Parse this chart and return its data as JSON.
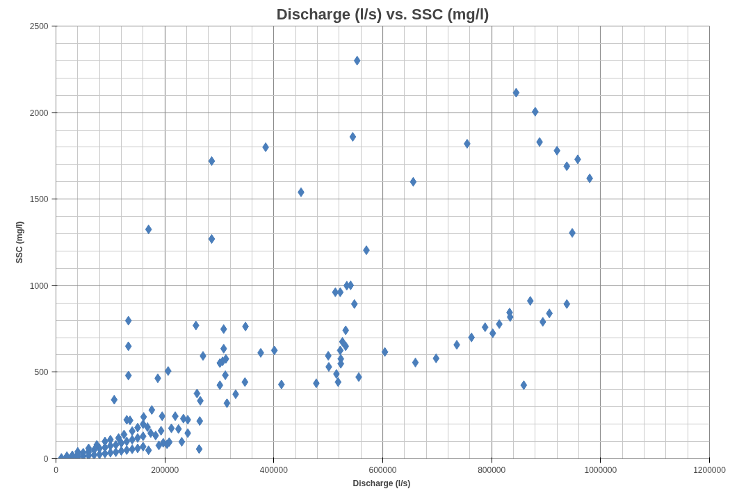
{
  "chart_data": {
    "type": "scatter",
    "title": "Discharge (l/s) vs. SSC (mg/l)",
    "xlabel": "Discharge  (l/s)",
    "ylabel": "SSC (mg/l)",
    "xlim": [
      0,
      1200000
    ],
    "xticks": [
      0,
      200000,
      400000,
      600000,
      800000,
      1000000,
      1200000
    ],
    "ylim": [
      0,
      2500
    ],
    "yticks": [
      0,
      500,
      1000,
      1500,
      2000,
      2500
    ],
    "grid": true,
    "marker": "diamond",
    "series": [
      {
        "color": "#4a7ebb",
        "x": [
          10000,
          20000,
          30000,
          40000,
          50000,
          60000,
          70000,
          80000,
          90000,
          100000,
          110000,
          120000,
          130000,
          140000,
          150000,
          160000,
          20000,
          30000,
          40000,
          50000,
          60000,
          70000,
          80000,
          90000,
          100000,
          110000,
          120000,
          130000,
          140000,
          150000,
          160000,
          40000,
          60000,
          75000,
          90000,
          100000,
          115000,
          125000,
          140000,
          150000,
          160000,
          107000,
          130000,
          136000,
          133000,
          133000,
          133000,
          161000,
          168000,
          170000,
          174000,
          176000,
          183000,
          189000,
          204000,
          187000,
          206000,
          195000,
          219000,
          234000,
          242000,
          212000,
          225000,
          242000,
          193000,
          197000,
          208000,
          231000,
          257000,
          308000,
          348000,
          308000,
          270000,
          376000,
          401000,
          306000,
          312000,
          301000,
          311000,
          301000,
          347000,
          414000,
          259000,
          265000,
          330000,
          314000,
          264000,
          263000,
          513000,
          522000,
          534000,
          541000,
          548000,
          532000,
          526000,
          532000,
          522000,
          500000,
          523000,
          523000,
          501000,
          515000,
          518000,
          556000,
          478000,
          604000,
          660000,
          698000,
          736000,
          763000,
          788000,
          802000,
          814000,
          833000,
          834000,
          871000,
          859000,
          894000,
          906000,
          938000,
          170000,
          286000,
          286000,
          385000,
          450000,
          545000,
          553000,
          570000,
          656000,
          755000,
          845000,
          880000,
          888000,
          920000,
          938000,
          958000,
          980000,
          948000
        ],
        "values": [
          5,
          5,
          8,
          10,
          15,
          18,
          22,
          25,
          30,
          35,
          38,
          45,
          50,
          55,
          60,
          70,
          15,
          20,
          25,
          35,
          40,
          50,
          60,
          65,
          75,
          80,
          90,
          100,
          110,
          120,
          130,
          40,
          60,
          80,
          100,
          110,
          120,
          140,
          160,
          180,
          200,
          341,
          225,
          222,
          798,
          650,
          481,
          242,
          183,
          49,
          148,
          282,
          134,
          77,
          84,
          465,
          507,
          246,
          246,
          232,
          225,
          176,
          172,
          148,
          162,
          92,
          96,
          98,
          770,
          749,
          764,
          636,
          594,
          612,
          626,
          563,
          577,
          553,
          483,
          425,
          443,
          429,
          377,
          335,
          373,
          321,
          218,
          56,
          962,
          962,
          1000,
          1002,
          894,
          742,
          676,
          650,
          626,
          595,
          577,
          549,
          531,
          490,
          443,
          472,
          436,
          617,
          556,
          580,
          658,
          701,
          760,
          725,
          778,
          845,
          819,
          912,
          425,
          791,
          840,
          894,
          1325,
          1720,
          1270,
          1800,
          1540,
          1860,
          2300,
          1205,
          1600,
          1820,
          2115,
          2005,
          1830,
          1780,
          1690,
          1730,
          1620,
          1305
        ]
      }
    ]
  }
}
